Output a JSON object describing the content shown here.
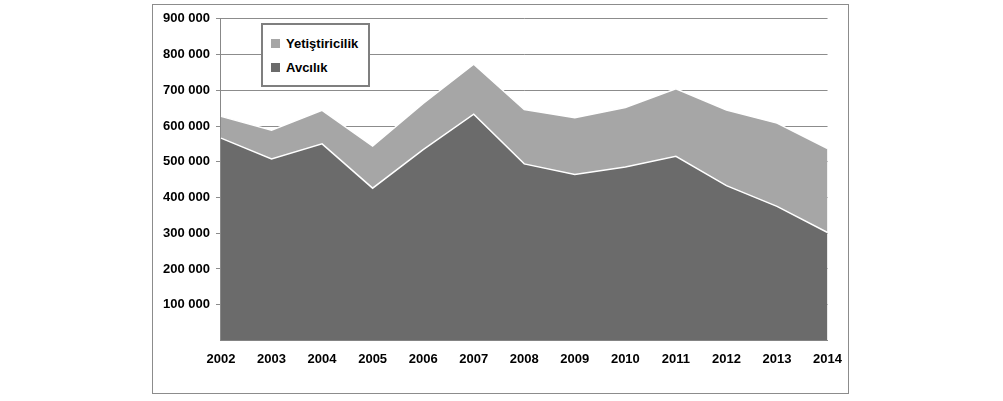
{
  "chart_data": {
    "type": "stacked_area",
    "categories": [
      "2002",
      "2003",
      "2004",
      "2005",
      "2006",
      "2007",
      "2008",
      "2009",
      "2010",
      "2011",
      "2012",
      "2013",
      "2014"
    ],
    "series": [
      {
        "name": "Avcılık",
        "color": "#6b6b6b",
        "values": [
          566000,
          508000,
          550000,
          426000,
          534000,
          633000,
          494000,
          464000,
          485000,
          515000,
          433000,
          375000,
          302000
        ]
      },
      {
        "name": "Yetiştiricilik",
        "color": "#a6a6a6",
        "values": [
          61000,
          80000,
          94000,
          118000,
          129000,
          140000,
          152000,
          159000,
          167000,
          189000,
          212000,
          233000,
          235000
        ]
      }
    ],
    "ylim": [
      0,
      900000
    ],
    "yticks": [
      {
        "value": 100000,
        "label": "100 000"
      },
      {
        "value": 200000,
        "label": "200 000"
      },
      {
        "value": 300000,
        "label": "300 000"
      },
      {
        "value": 400000,
        "label": "400 000"
      },
      {
        "value": 500000,
        "label": "500 000"
      },
      {
        "value": 600000,
        "label": "600 000"
      },
      {
        "value": 700000,
        "label": "700 000"
      },
      {
        "value": 800000,
        "label": "800 000"
      },
      {
        "value": 900000,
        "label": "900 000"
      }
    ],
    "stacked": true,
    "grid": true,
    "legend": "upper left"
  }
}
